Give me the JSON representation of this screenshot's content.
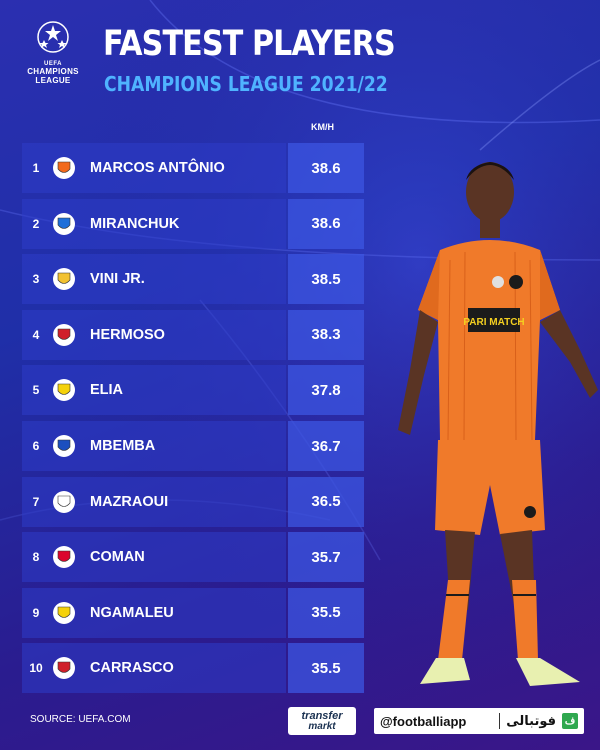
{
  "header": {
    "logo_line1": "UEFA",
    "logo_line2": "CHAMPIONS",
    "logo_line3": "LEAGUE",
    "title": "FASTEST PLAYERS",
    "subtitle": "CHAMPIONS LEAGUE 2021/22",
    "unit": "KM/H"
  },
  "players": [
    {
      "rank": "1",
      "name": "MARCOS ANTÔNIO",
      "speed": "38.6",
      "crest": "shakhtar-crest-icon",
      "crest_color": "#f26a1b"
    },
    {
      "rank": "2",
      "name": "MIRANCHUK",
      "speed": "38.6",
      "crest": "atalanta-crest-icon",
      "crest_color": "#1e6fd9"
    },
    {
      "rank": "3",
      "name": "VINI JR.",
      "speed": "38.5",
      "crest": "real-madrid-crest-icon",
      "crest_color": "#f2c230"
    },
    {
      "rank": "4",
      "name": "HERMOSO",
      "speed": "38.3",
      "crest": "atletico-madrid-crest-icon",
      "crest_color": "#d0202a"
    },
    {
      "rank": "5",
      "name": "ELIA",
      "speed": "37.8",
      "crest": "young-boys-crest-icon",
      "crest_color": "#f5d20a"
    },
    {
      "rank": "6",
      "name": "MBEMBA",
      "speed": "36.7",
      "crest": "porto-crest-icon",
      "crest_color": "#1b4fbf"
    },
    {
      "rank": "7",
      "name": "MAZRAOUI",
      "speed": "36.5",
      "crest": "ajax-crest-icon",
      "crest_color": "#ffffff"
    },
    {
      "rank": "8",
      "name": "COMAN",
      "speed": "35.7",
      "crest": "bayern-crest-icon",
      "crest_color": "#dc052d"
    },
    {
      "rank": "9",
      "name": "NGAMALEU",
      "speed": "35.5",
      "crest": "young-boys-crest-icon",
      "crest_color": "#f5d20a"
    },
    {
      "rank": "10",
      "name": "CARRASCO",
      "speed": "35.5",
      "crest": "atletico-madrid-crest-icon",
      "crest_color": "#d0202a"
    }
  ],
  "sponsor": "PARI MATCH",
  "footer": {
    "source": "SOURCE: UEFA.COM",
    "tm_line1": "transfer",
    "tm_line2": "markt",
    "handle": "@footballiapp",
    "arabic": "فوتبالی",
    "mark": "ف"
  },
  "colors": {
    "background": "#2232a8",
    "subtitle": "#4fb3ff",
    "row_bar": "#2d3cc8",
    "value_box": "#3c55e1",
    "kit_orange": "#f07a2a"
  }
}
